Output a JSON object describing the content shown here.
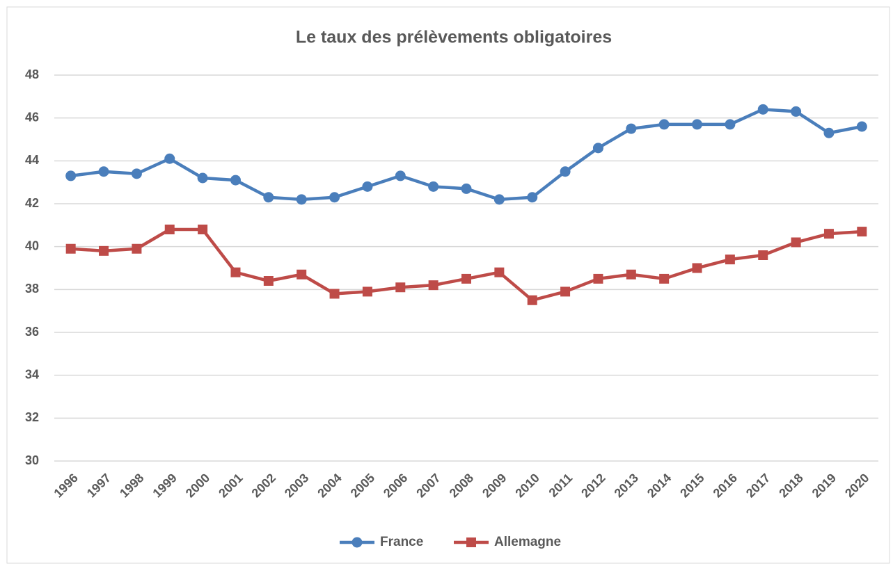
{
  "chart_data": {
    "type": "line",
    "title": "Le taux des prélèvements obligatoires",
    "categories": [
      "1996",
      "1997",
      "1998",
      "1999",
      "2000",
      "2001",
      "2002",
      "2003",
      "2004",
      "2005",
      "2006",
      "2007",
      "2008",
      "2009",
      "2010",
      "2011",
      "2012",
      "2013",
      "2014",
      "2015",
      "2016",
      "2017",
      "2018",
      "2019",
      "2020"
    ],
    "series": [
      {
        "name": "France",
        "color": "#4a7ebb",
        "marker": "circle",
        "values": [
          43.3,
          43.5,
          43.4,
          44.1,
          43.2,
          43.1,
          42.3,
          42.2,
          42.3,
          42.8,
          43.3,
          42.8,
          42.7,
          42.2,
          42.3,
          43.5,
          44.6,
          45.5,
          45.7,
          45.7,
          45.7,
          46.4,
          46.3,
          45.3,
          45.6
        ]
      },
      {
        "name": "Allemagne",
        "color": "#be4b48",
        "marker": "square",
        "values": [
          39.9,
          39.8,
          39.9,
          40.8,
          40.8,
          38.8,
          38.4,
          38.7,
          37.8,
          37.9,
          38.1,
          38.2,
          38.5,
          38.8,
          37.5,
          37.9,
          38.5,
          38.7,
          38.5,
          39.0,
          39.4,
          39.6,
          40.2,
          40.6,
          40.7
        ]
      }
    ],
    "ylim": [
      30,
      48
    ],
    "yticks": [
      30,
      32,
      34,
      36,
      38,
      40,
      42,
      44,
      46,
      48
    ],
    "grid": true,
    "legend": "bottom"
  }
}
